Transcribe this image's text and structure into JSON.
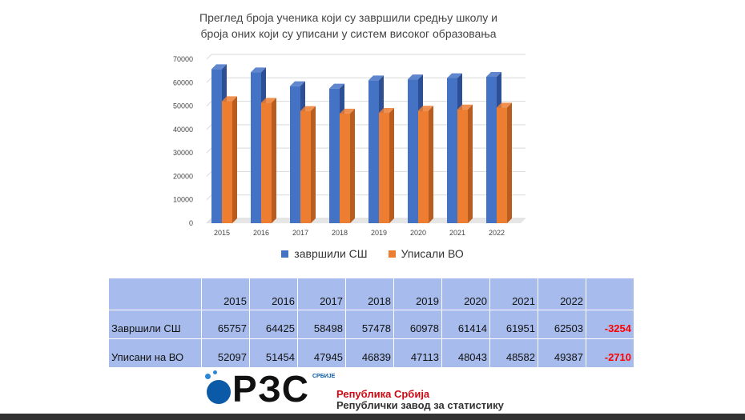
{
  "colors": {
    "series1": "#4472c4",
    "series1_dark": "#2c4f96",
    "series2": "#ed7d31",
    "series2_dark": "#b85d1f",
    "table_bg": "#a7bcec",
    "diff": "#ff0000"
  },
  "chart_data": {
    "type": "bar",
    "title": "Преглед броја ученика који су завршили средњу школу и броја оних који су уписани у систем високог образовања",
    "title_line1": "Преглед броја ученика који су завршили средњу школу и",
    "title_line2": "броја оних који су уписани у систем високог образовања",
    "categories": [
      "2015",
      "2016",
      "2017",
      "2018",
      "2019",
      "2020",
      "2021",
      "2022"
    ],
    "series": [
      {
        "name": "завршили СШ",
        "values": [
          65757,
          64425,
          58498,
          57478,
          60978,
          61414,
          61951,
          62503
        ]
      },
      {
        "name": "Уписали ВО",
        "values": [
          52097,
          51454,
          47945,
          46839,
          47113,
          48043,
          48582,
          49387
        ]
      }
    ],
    "ylim": [
      0,
      70000
    ],
    "yticks": [
      "0",
      "10000",
      "20000",
      "30000",
      "40000",
      "50000",
      "60000",
      "70000"
    ],
    "grid": true,
    "legend_position": "bottom"
  },
  "table": {
    "years": [
      "2015",
      "2016",
      "2017",
      "2018",
      "2019",
      "2020",
      "2021",
      "2022"
    ],
    "rows": [
      {
        "label": "Завршили СШ",
        "values": [
          "65757",
          "64425",
          "58498",
          "57478",
          "60978",
          "61414",
          "61951",
          "62503"
        ],
        "diff": "-3254"
      },
      {
        "label": "Уписани на ВО",
        "values": [
          "52097",
          "51454",
          "47945",
          "46839",
          "47113",
          "48043",
          "48582",
          "49387"
        ],
        "diff": "-2710"
      }
    ]
  },
  "logo": {
    "letters": "РЗС",
    "small": "СРБИЈЕ",
    "line1": "Република Србија",
    "line2": "Републички завод за статистику"
  }
}
